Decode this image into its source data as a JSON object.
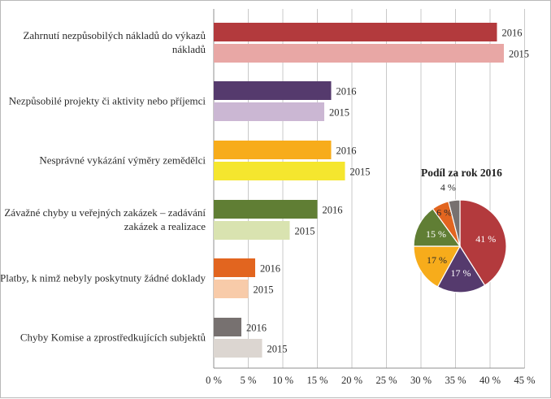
{
  "chart_data": [
    {
      "type": "bar",
      "orientation": "horizontal",
      "categories": [
        [
          "Zahrnutí nezpůsobilých nákladů do výkazů",
          "nákladů"
        ],
        [
          "Nezpůsobilé projekty či aktivity nebo příjemci"
        ],
        [
          "Nesprávné vykázání výměry zemědělci"
        ],
        [
          "Závažné chyby u veřejných zakázek – zadávání",
          "zakázek a realizace"
        ],
        [
          "Platby, k nimž nebyly poskytnuty žádné doklady"
        ],
        [
          "Chyby Komise a zprostředkujících subjektů"
        ]
      ],
      "series": [
        {
          "name": "2016",
          "values": [
            41,
            17,
            17,
            15,
            6,
            4
          ],
          "colors": [
            "#b33a3d",
            "#553a6d",
            "#f7ac1b",
            "#607e34",
            "#e2651f",
            "#777170"
          ]
        },
        {
          "name": "2015",
          "values": [
            42,
            16,
            19,
            11,
            5,
            7
          ],
          "colors": [
            "#e8a7a5",
            "#cbb7d3",
            "#f5e62e",
            "#d9e3b0",
            "#f8cba9",
            "#dcd6d1"
          ]
        }
      ],
      "xlim": [
        0,
        45
      ],
      "xticks": [
        "0 %",
        "5 %",
        "10 %",
        "15 %",
        "20 %",
        "25 %",
        "30 %",
        "35 %",
        "40 %",
        "45 %"
      ],
      "grid": true,
      "bar_labels": "series name at bar end"
    },
    {
      "type": "pie",
      "title": "Podíl za rok 2016",
      "slices": [
        {
          "label": "41 %",
          "value": 41,
          "color": "#b33a3d"
        },
        {
          "label": "17 %",
          "value": 17,
          "color": "#553a6d"
        },
        {
          "label": "17 %",
          "value": 17,
          "color": "#f7ac1b"
        },
        {
          "label": "15 %",
          "value": 15,
          "color": "#607e34"
        },
        {
          "label": "6 %",
          "value": 6,
          "color": "#e2651f"
        },
        {
          "label": "4 %",
          "value": 4,
          "color": "#777170"
        }
      ]
    }
  ]
}
